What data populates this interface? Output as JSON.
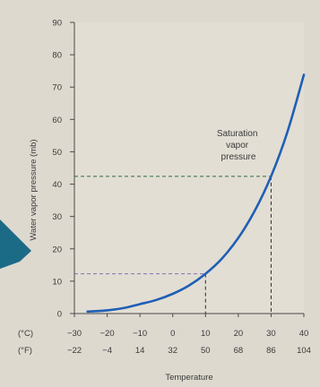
{
  "chart_data": {
    "type": "line",
    "ylabel": "Water vapor pressure (mb)",
    "xlabel": "Temperature",
    "ylim": [
      0,
      90
    ],
    "xlim_c": [
      -30,
      40
    ],
    "y_ticks": [
      0,
      10,
      20,
      30,
      40,
      50,
      60,
      70,
      80,
      90
    ],
    "x_ticks_c": [
      -30,
      -20,
      -10,
      0,
      10,
      20,
      30,
      40
    ],
    "x_ticks_f": [
      -22,
      -4,
      14,
      32,
      50,
      68,
      86,
      104
    ],
    "x_unit_c": "(°C)",
    "x_unit_f": "(°F)",
    "grid": false,
    "series": [
      {
        "name": "Saturation vapor pressure",
        "color": "#1f5fb5",
        "x": [
          -26,
          -20,
          -15,
          -10,
          -5,
          0,
          5,
          10,
          15,
          20,
          25,
          30,
          35,
          40
        ],
        "y": [
          0.6,
          1.0,
          1.7,
          2.9,
          4.2,
          6.1,
          8.7,
          12.3,
          17.0,
          23.4,
          31.7,
          42.4,
          56.2,
          73.8
        ]
      }
    ],
    "reference_lines": [
      {
        "x": 10,
        "y": 12.3,
        "color": "#8a6fb0"
      },
      {
        "x": 30,
        "y": 42.4,
        "color": "#2e6b3a"
      }
    ],
    "annotation_lines": [
      "Saturation",
      "vapor",
      "pressure"
    ]
  },
  "decoration": {
    "arrow_color": "#1b6a86"
  }
}
